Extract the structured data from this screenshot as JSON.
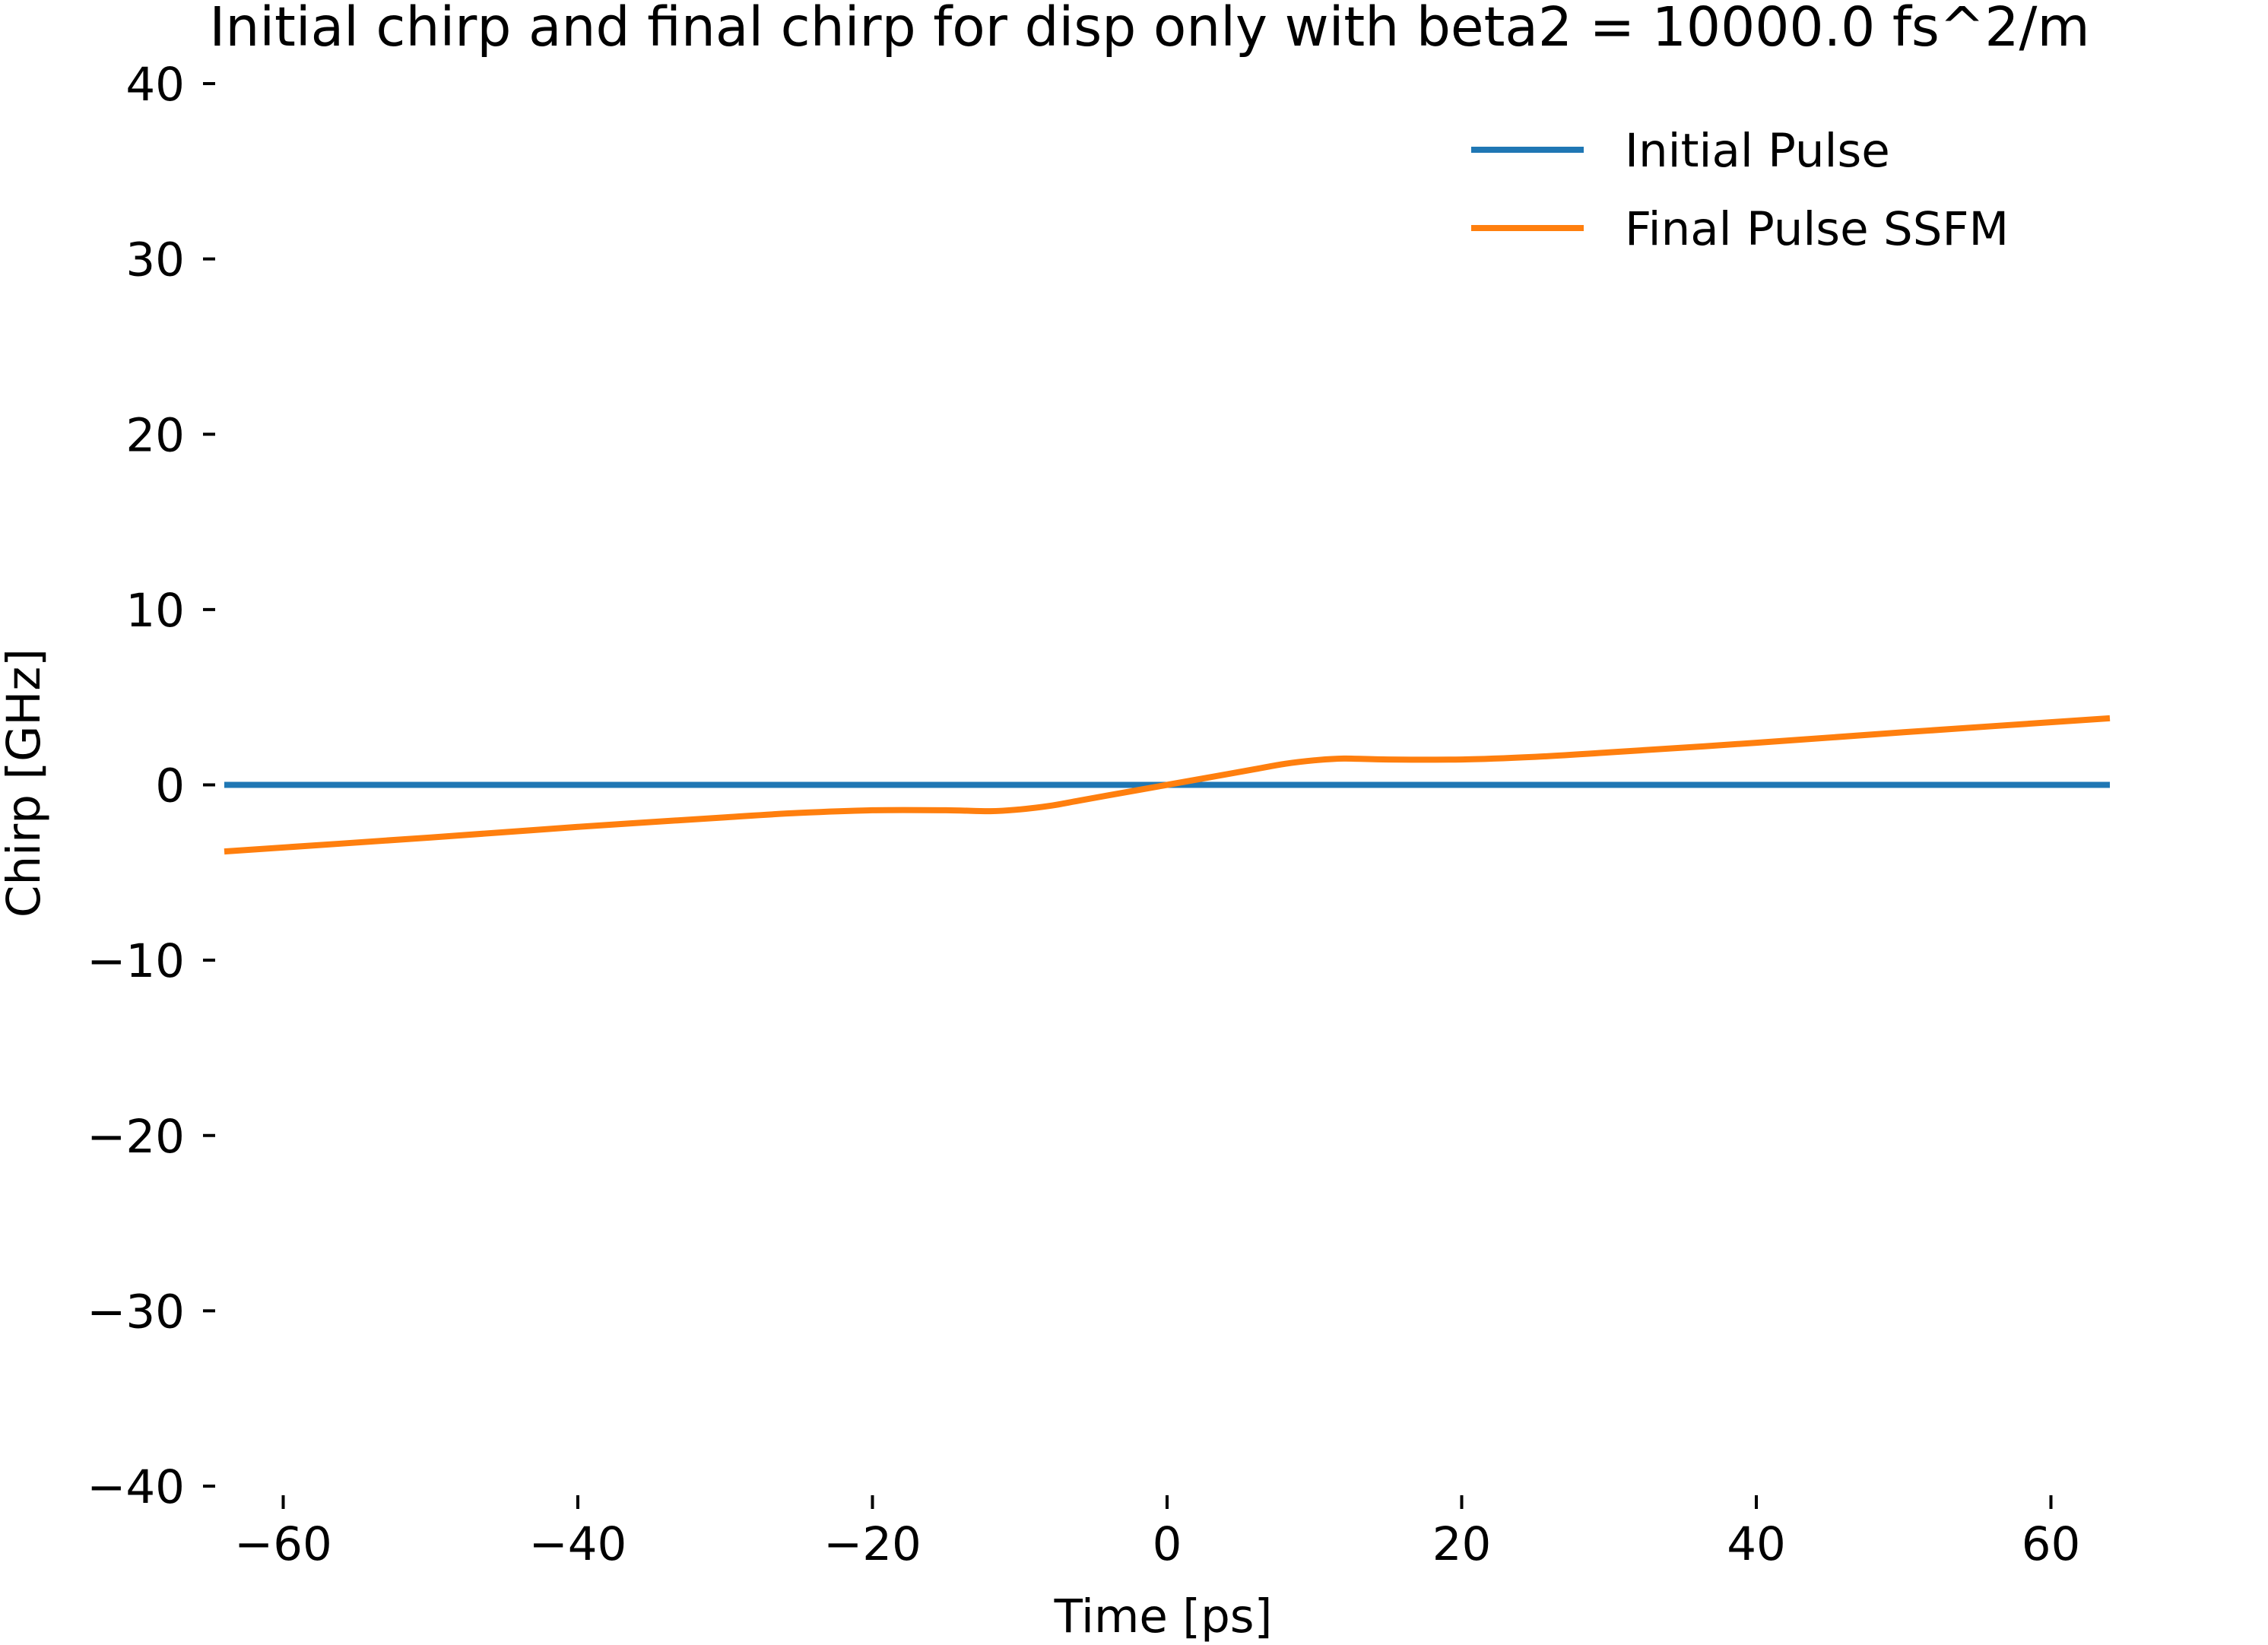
{
  "chart_data": {
    "type": "line",
    "title": "Initial chirp and final chirp for disp only with beta2 = 10000.0 fs^2/m",
    "xlabel": "Time [ps]",
    "ylabel": "Chirp [GHz]",
    "xlim": [
      -64,
      64
    ],
    "ylim": [
      -40,
      40
    ],
    "xticks": [
      -60,
      -40,
      -20,
      0,
      20,
      40,
      60
    ],
    "xtick_labels": [
      "−60",
      "−40",
      "−20",
      "0",
      "20",
      "40",
      "60"
    ],
    "yticks": [
      40,
      30,
      20,
      10,
      0,
      -10,
      -20,
      -30,
      -40
    ],
    "ytick_labels": [
      "40",
      "30",
      "20",
      "10",
      "0",
      "−10",
      "−20",
      "−30",
      "−40"
    ],
    "grid": false,
    "legend_position": "top-right",
    "series": [
      {
        "name": "Initial Pulse",
        "color": "#1f77b4",
        "x": [
          -64,
          64
        ],
        "y": [
          0,
          0
        ]
      },
      {
        "name": "Final Pulse SSFM",
        "color": "#ff7f0e",
        "x": [
          -64,
          -50,
          -40,
          -30,
          -25,
          -20,
          -15,
          -12,
          -10,
          -8,
          -6,
          -4,
          -2,
          0,
          2,
          4,
          6,
          8,
          10,
          12,
          15,
          20,
          25,
          30,
          40,
          50,
          64
        ],
        "y": [
          -3.8,
          -3.0,
          -2.4,
          -1.85,
          -1.6,
          -1.45,
          -1.45,
          -1.5,
          -1.4,
          -1.2,
          -0.9,
          -0.6,
          -0.3,
          0.0,
          0.3,
          0.6,
          0.9,
          1.2,
          1.4,
          1.5,
          1.45,
          1.45,
          1.6,
          1.85,
          2.4,
          3.0,
          3.8
        ]
      }
    ]
  }
}
